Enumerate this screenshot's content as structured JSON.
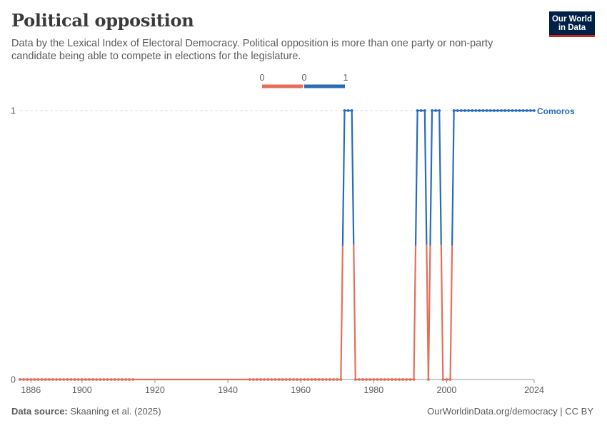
{
  "title": "Political opposition",
  "subtitle": "Data by the Lexical Index of Electoral Democracy. Political opposition is more than one party or non-party candidate being able to compete in elections for the legislature.",
  "logo": {
    "line1": "Our World",
    "line2": "in Data"
  },
  "footer": {
    "source_label": "Data source:",
    "source_text": "Skaaning et al. (2025)",
    "right_text": "OurWorldinData.org/democracy | CC BY"
  },
  "colors": {
    "zero": "#e56e5a",
    "one": "#286bbb",
    "text": "#5b5b5b"
  },
  "legend": {
    "ticks": [
      "0",
      "0",
      "1"
    ]
  },
  "chart_data": {
    "type": "line",
    "title": "Political opposition",
    "xlabel": "",
    "ylabel": "",
    "xlim": [
      1883,
      2024
    ],
    "ylim": [
      0,
      1
    ],
    "x_ticks": [
      1886,
      1900,
      1920,
      1940,
      1960,
      1980,
      2000,
      2024
    ],
    "y_ticks": [
      0,
      1
    ],
    "grid": "horizontal",
    "series": [
      {
        "name": "Comoros",
        "segments": [
          {
            "start": 1883,
            "end": 1914,
            "markers": true
          },
          {
            "start": 1914,
            "end": 1946,
            "markers": false
          },
          {
            "start": 1946,
            "end": 2024,
            "markers": true
          }
        ],
        "ones": [
          [
            1972,
            1974
          ],
          [
            1992,
            1994
          ],
          [
            1996,
            1998
          ],
          [
            2002,
            2024
          ]
        ]
      }
    ]
  }
}
